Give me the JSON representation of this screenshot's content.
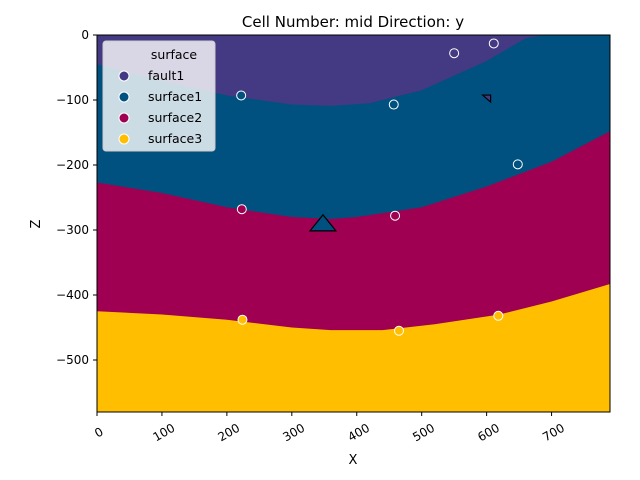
{
  "chart_data": {
    "type": "area",
    "title": "Cell Number: mid Direction: y",
    "xlabel": "X",
    "ylabel": "Z",
    "xlim": [
      0,
      790
    ],
    "ylim": [
      -580,
      0
    ],
    "x_ticks": [
      0,
      100,
      200,
      300,
      400,
      500,
      600,
      700
    ],
    "y_ticks": [
      0,
      -100,
      -200,
      -300,
      -400,
      -500
    ],
    "grid": false,
    "legend_position": "top-left",
    "legend_title": "surface",
    "series": [
      {
        "name": "fault1",
        "color": "#443983"
      },
      {
        "name": "surface1",
        "color": "#00517f"
      },
      {
        "name": "surface2",
        "color": "#9f0052"
      },
      {
        "name": "surface3",
        "color": "#ffbe00"
      }
    ],
    "boundaries": {
      "fault1_bottom": [
        [
          0,
          -45
        ],
        [
          100,
          -70
        ],
        [
          200,
          -93
        ],
        [
          300,
          -107
        ],
        [
          360,
          -109
        ],
        [
          420,
          -105
        ],
        [
          500,
          -85
        ],
        [
          600,
          -40
        ],
        [
          660,
          -5
        ],
        [
          690,
          0
        ]
      ],
      "surface1_bottom": [
        [
          0,
          -227
        ],
        [
          100,
          -243
        ],
        [
          200,
          -265
        ],
        [
          300,
          -280
        ],
        [
          360,
          -283
        ],
        [
          400,
          -280
        ],
        [
          500,
          -265
        ],
        [
          600,
          -233
        ],
        [
          700,
          -195
        ],
        [
          790,
          -148
        ]
      ],
      "surface2_bottom": [
        [
          0,
          -425
        ],
        [
          100,
          -430
        ],
        [
          200,
          -438
        ],
        [
          300,
          -450
        ],
        [
          360,
          -454
        ],
        [
          440,
          -454
        ],
        [
          520,
          -445
        ],
        [
          620,
          -430
        ],
        [
          700,
          -410
        ],
        [
          790,
          -383
        ]
      ]
    },
    "points": [
      {
        "surface": "fault1",
        "x": 550,
        "z": -28
      },
      {
        "surface": "fault1",
        "x": 611,
        "z": -13
      },
      {
        "surface": "surface1",
        "x": 222,
        "z": -93
      },
      {
        "surface": "surface1",
        "x": 457,
        "z": -107
      },
      {
        "surface": "surface1",
        "x": 648,
        "z": -199
      },
      {
        "surface": "surface2",
        "x": 223,
        "z": -268
      },
      {
        "surface": "surface2",
        "x": 459,
        "z": -278
      },
      {
        "surface": "surface3",
        "x": 224,
        "z": -438
      },
      {
        "surface": "surface3",
        "x": 465,
        "z": -455
      },
      {
        "surface": "surface3",
        "x": 618,
        "z": -432
      }
    ],
    "orientations": [
      {
        "surface": "surface1",
        "x": 348,
        "z": -289,
        "shape": "large-triangle"
      },
      {
        "surface": "fault1",
        "x": 600,
        "z": -97,
        "shape": "small-triangle"
      }
    ]
  }
}
